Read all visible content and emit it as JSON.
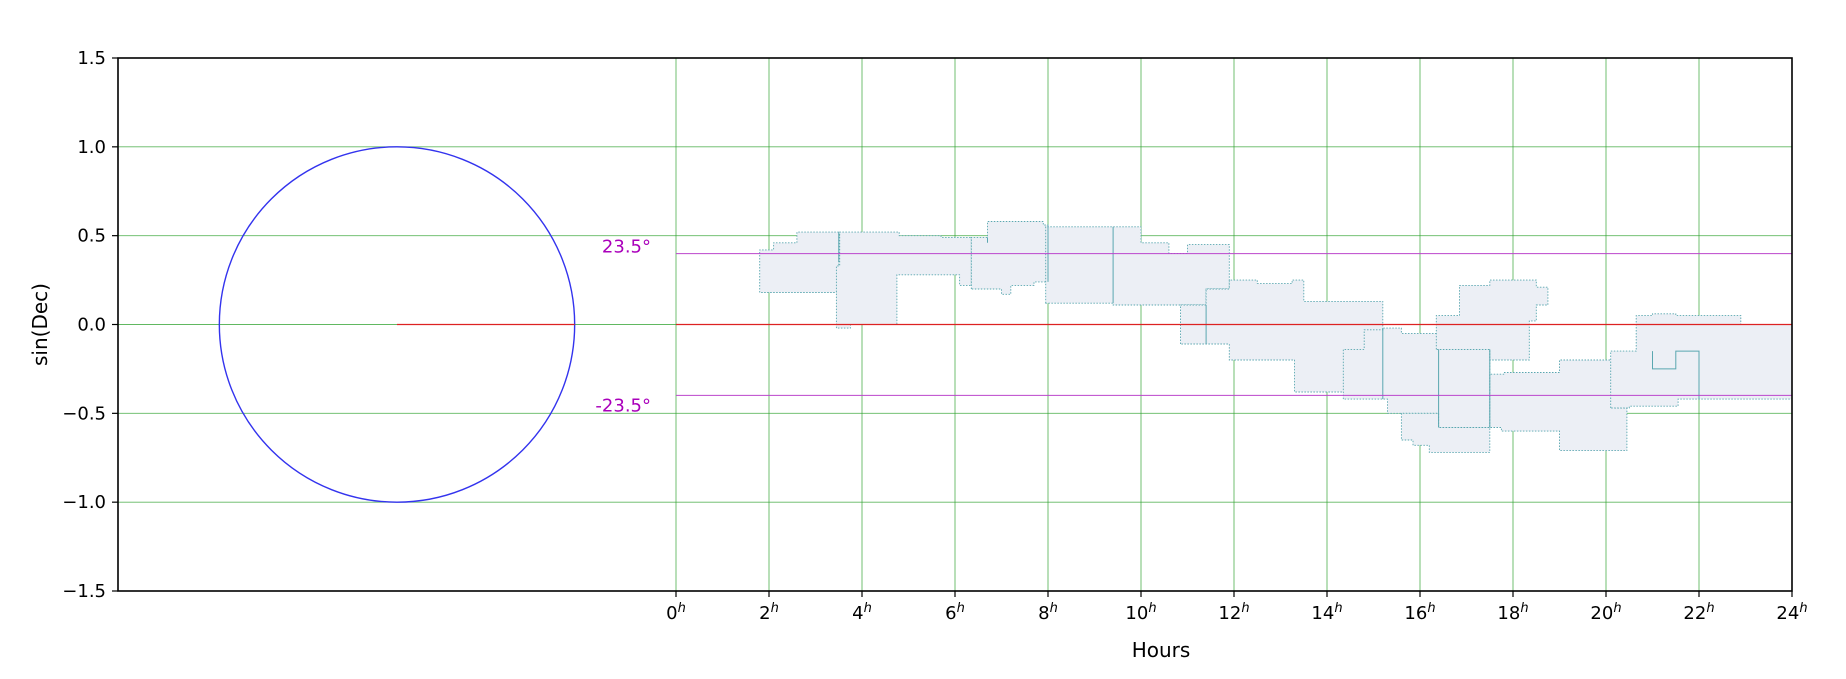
{
  "chart_data": {
    "type": "area",
    "xlabel": "Hours",
    "ylabel": "sin(Dec)",
    "xlim": [
      0,
      24
    ],
    "ylim": [
      -1.5,
      1.5
    ],
    "x_tick_values": [
      0,
      2,
      4,
      6,
      8,
      10,
      12,
      14,
      16,
      18,
      20,
      22,
      24
    ],
    "x_tick_unit_superscript": "h",
    "y_tick_values": [
      1.5,
      1.0,
      0.5,
      0.0,
      -0.5,
      -1.0,
      -1.5
    ],
    "y_tick_labels": [
      "1.5",
      "1.0",
      "0.5",
      "0.0",
      "−0.5",
      "−1.0",
      "−1.5"
    ],
    "grid": true,
    "colors": {
      "grid": "#2ca02c",
      "circle": "#3333ee",
      "equator": "#dd2222",
      "ecliptic": "#bb44cc",
      "ecliptic_label": "#aa00bb",
      "region_fill": "#eceff5",
      "region_edge": "#5aa7b0"
    },
    "reference_circle": {
      "radius": 1.0
    },
    "equator": {
      "sin_dec": 0.0
    },
    "ecliptic_lines": [
      {
        "label": "23.5°",
        "sin_dec": 0.399
      },
      {
        "label": "-23.5°",
        "sin_dec": -0.399
      }
    ],
    "regions": [
      [
        [
          1.8,
          0.18
        ],
        [
          1.8,
          0.42
        ],
        [
          2.1,
          0.42
        ],
        [
          2.1,
          0.46
        ],
        [
          2.6,
          0.46
        ],
        [
          2.6,
          0.52
        ],
        [
          3.5,
          0.52
        ],
        [
          3.5,
          0.18
        ]
      ],
      [
        [
          3.45,
          -0.02
        ],
        [
          3.45,
          0.33
        ],
        [
          3.52,
          0.33
        ],
        [
          3.52,
          0.52
        ],
        [
          4.8,
          0.52
        ],
        [
          4.8,
          0.5
        ],
        [
          5.7,
          0.5
        ],
        [
          5.7,
          0.49
        ],
        [
          6.35,
          0.49
        ],
        [
          6.35,
          0.22
        ],
        [
          6.1,
          0.22
        ],
        [
          6.1,
          0.28
        ],
        [
          4.75,
          0.28
        ],
        [
          4.75,
          0.0
        ],
        [
          3.75,
          0.0
        ],
        [
          3.75,
          -0.02
        ]
      ],
      [
        [
          6.35,
          0.2
        ],
        [
          6.35,
          0.49
        ],
        [
          6.7,
          0.49
        ],
        [
          6.7,
          0.58
        ],
        [
          7.9,
          0.58
        ],
        [
          7.9,
          0.56
        ],
        [
          8.0,
          0.56
        ],
        [
          8.0,
          0.24
        ],
        [
          7.7,
          0.24
        ],
        [
          7.7,
          0.22
        ],
        [
          7.2,
          0.22
        ],
        [
          7.2,
          0.17
        ],
        [
          7.0,
          0.17
        ],
        [
          7.0,
          0.2
        ]
      ],
      [
        [
          7.95,
          0.12
        ],
        [
          7.95,
          0.55
        ],
        [
          10.0,
          0.55
        ],
        [
          10.0,
          0.46
        ],
        [
          10.6,
          0.46
        ],
        [
          10.6,
          0.4
        ],
        [
          11.0,
          0.4
        ],
        [
          11.0,
          0.45
        ],
        [
          11.9,
          0.45
        ],
        [
          11.9,
          0.2
        ],
        [
          11.4,
          0.2
        ],
        [
          11.4,
          0.11
        ],
        [
          9.4,
          0.11
        ],
        [
          9.4,
          0.12
        ]
      ],
      [
        [
          10.85,
          -0.11
        ],
        [
          10.85,
          0.11
        ],
        [
          11.4,
          0.11
        ],
        [
          11.4,
          0.2
        ],
        [
          11.9,
          0.2
        ],
        [
          11.9,
          0.25
        ],
        [
          12.5,
          0.25
        ],
        [
          12.5,
          0.23
        ],
        [
          13.25,
          0.23
        ],
        [
          13.25,
          0.25
        ],
        [
          13.5,
          0.25
        ],
        [
          13.5,
          0.13
        ],
        [
          15.2,
          0.13
        ],
        [
          15.2,
          -0.38
        ],
        [
          13.3,
          -0.38
        ],
        [
          13.3,
          -0.2
        ],
        [
          11.9,
          -0.2
        ],
        [
          11.9,
          -0.11
        ]
      ],
      [
        [
          14.35,
          -0.42
        ],
        [
          14.35,
          -0.14
        ],
        [
          14.8,
          -0.14
        ],
        [
          14.8,
          -0.03
        ],
        [
          15.2,
          -0.03
        ],
        [
          15.2,
          -0.02
        ],
        [
          15.6,
          -0.02
        ],
        [
          15.6,
          -0.05
        ],
        [
          16.4,
          -0.05
        ],
        [
          16.4,
          -0.14
        ],
        [
          17.5,
          -0.14
        ],
        [
          17.5,
          -0.58
        ],
        [
          16.4,
          -0.58
        ],
        [
          16.4,
          -0.5
        ],
        [
          15.3,
          -0.5
        ],
        [
          15.3,
          -0.42
        ]
      ],
      [
        [
          15.6,
          -0.5
        ],
        [
          15.6,
          -0.65
        ],
        [
          15.85,
          -0.65
        ],
        [
          15.85,
          -0.68
        ],
        [
          16.2,
          -0.68
        ],
        [
          16.2,
          -0.72
        ],
        [
          17.5,
          -0.72
        ],
        [
          17.5,
          -0.58
        ],
        [
          16.4,
          -0.58
        ],
        [
          16.4,
          -0.5
        ]
      ],
      [
        [
          16.35,
          -0.14
        ],
        [
          16.35,
          0.05
        ],
        [
          16.85,
          0.05
        ],
        [
          16.85,
          0.22
        ],
        [
          17.5,
          0.22
        ],
        [
          17.5,
          0.25
        ],
        [
          18.5,
          0.25
        ],
        [
          18.5,
          0.21
        ],
        [
          18.75,
          0.21
        ],
        [
          18.75,
          0.11
        ],
        [
          18.5,
          0.11
        ],
        [
          18.5,
          0.02
        ],
        [
          18.35,
          0.02
        ],
        [
          18.35,
          -0.2
        ],
        [
          17.5,
          -0.2
        ],
        [
          17.5,
          -0.14
        ]
      ],
      [
        [
          17.5,
          -0.28
        ],
        [
          17.5,
          -0.58
        ],
        [
          17.75,
          -0.58
        ],
        [
          17.75,
          -0.6
        ],
        [
          19.0,
          -0.6
        ],
        [
          19.0,
          -0.71
        ],
        [
          20.45,
          -0.71
        ],
        [
          20.45,
          -0.47
        ],
        [
          20.15,
          -0.47
        ],
        [
          20.15,
          -0.2
        ],
        [
          19.0,
          -0.2
        ],
        [
          19.0,
          -0.27
        ],
        [
          17.8,
          -0.27
        ],
        [
          17.8,
          -0.28
        ]
      ],
      [
        [
          20.1,
          -0.47
        ],
        [
          20.1,
          -0.15
        ],
        [
          20.65,
          -0.15
        ],
        [
          20.65,
          0.05
        ],
        [
          21.0,
          0.05
        ],
        [
          21.0,
          0.06
        ],
        [
          21.5,
          0.06
        ],
        [
          21.5,
          0.05
        ],
        [
          22.9,
          0.05
        ],
        [
          22.9,
          0.0
        ],
        [
          24.0,
          0.0
        ],
        [
          24.0,
          -0.42
        ],
        [
          21.55,
          -0.42
        ],
        [
          21.55,
          -0.46
        ],
        [
          20.5,
          -0.46
        ],
        [
          20.5,
          -0.47
        ]
      ]
    ],
    "region_inner_edges": [
      [
        [
          3.5,
          0.52
        ],
        [
          3.5,
          0.35
        ]
      ],
      [
        [
          6.7,
          0.49
        ],
        [
          6.7,
          0.46
        ]
      ],
      [
        [
          8.0,
          0.56
        ],
        [
          8.0,
          0.24
        ]
      ],
      [
        [
          9.4,
          0.55
        ],
        [
          9.4,
          0.12
        ]
      ],
      [
        [
          11.4,
          0.11
        ],
        [
          11.4,
          -0.11
        ]
      ],
      [
        [
          15.2,
          -0.02
        ],
        [
          15.2,
          -0.42
        ]
      ],
      [
        [
          16.4,
          -0.14
        ],
        [
          16.4,
          -0.58
        ]
      ],
      [
        [
          17.5,
          -0.14
        ],
        [
          17.5,
          -0.58
        ]
      ],
      [
        [
          21.0,
          -0.15
        ],
        [
          21.0,
          -0.25
        ],
        [
          21.5,
          -0.25
        ],
        [
          21.5,
          -0.15
        ],
        [
          22.0,
          -0.15
        ],
        [
          22.0,
          -0.42
        ]
      ]
    ]
  }
}
